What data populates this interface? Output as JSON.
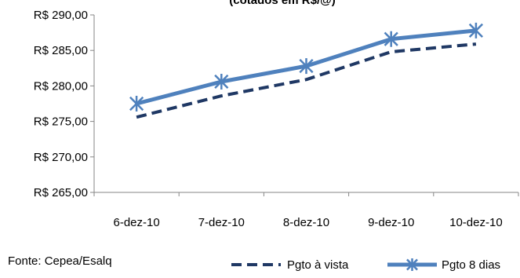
{
  "chart_data": {
    "type": "line",
    "title": "(cotados em R$/@)",
    "categories": [
      "6-dez-10",
      "7-dez-10",
      "8-dez-10",
      "9-dez-10",
      "10-dez-10"
    ],
    "ylim": [
      265,
      290
    ],
    "yticks": [
      265,
      270,
      275,
      280,
      285,
      290
    ],
    "ytick_labels": [
      "R$ 265,00",
      "R$ 270,00",
      "R$ 275,00",
      "R$ 280,00",
      "R$ 285,00",
      "R$ 290,00"
    ],
    "grid": false,
    "legend_position": "bottom-right",
    "series": [
      {
        "name": "Pgto à vista",
        "values": [
          275.6,
          278.6,
          280.9,
          284.8,
          285.9
        ],
        "color": "#1f3864",
        "style": "dashed"
      },
      {
        "name": "Pgto 8 dias",
        "values": [
          277.5,
          280.6,
          282.8,
          286.6,
          287.8
        ],
        "color": "#4f81bd",
        "style": "solid",
        "marker": "star"
      }
    ]
  },
  "footer": {
    "source": "Fonte: Cepea/Esalq"
  }
}
